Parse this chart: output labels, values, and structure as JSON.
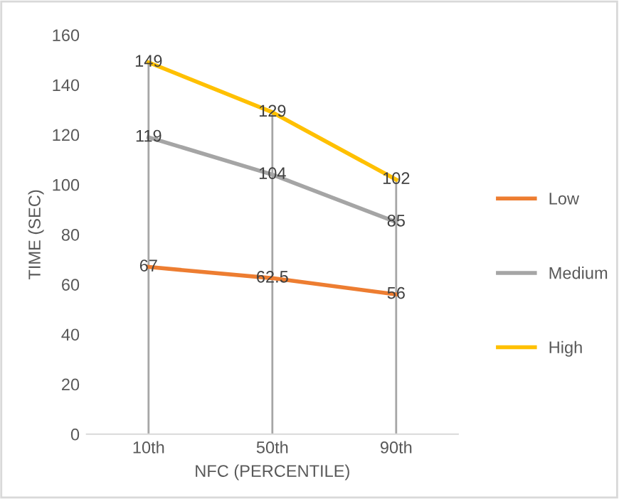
{
  "chart_data": {
    "type": "line",
    "xlabel": "NFC (PERCENTILE)",
    "ylabel": "TIME (SEC)",
    "categories": [
      "10th",
      "50th",
      "90th"
    ],
    "series": [
      {
        "name": "Low",
        "color": "#ed7d31",
        "values": [
          67,
          62.5,
          56
        ]
      },
      {
        "name": "Medium",
        "color": "#a5a5a5",
        "values": [
          119,
          104,
          85
        ]
      },
      {
        "name": "High",
        "color": "#ffc000",
        "values": [
          149,
          129,
          102
        ]
      }
    ],
    "ylim": [
      0,
      160
    ],
    "yticks": [
      0,
      20,
      40,
      60,
      80,
      100,
      120,
      140,
      160
    ],
    "grid": "x",
    "legend": "right",
    "data_labels": true,
    "marker": "none",
    "line_style": "solid"
  }
}
